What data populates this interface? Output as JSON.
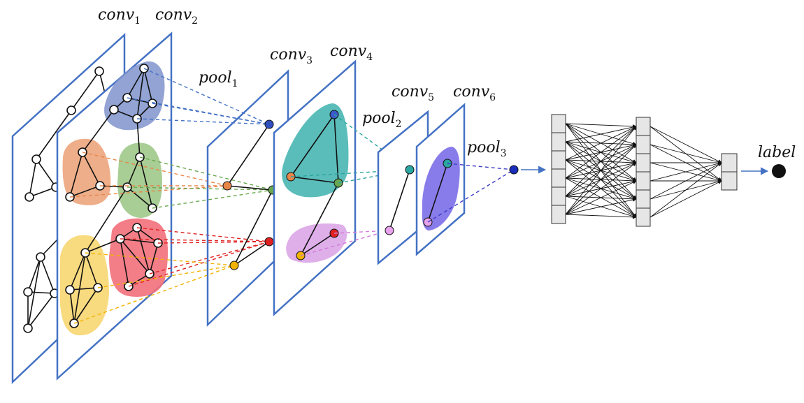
{
  "diagram": {
    "layers": {
      "conv1": {
        "base": "conv",
        "sub": "1"
      },
      "conv2": {
        "base": "conv",
        "sub": "2"
      },
      "pool1": {
        "base": "pool",
        "sub": "1"
      },
      "conv3": {
        "base": "conv",
        "sub": "3"
      },
      "conv4": {
        "base": "conv",
        "sub": "4"
      },
      "pool2": {
        "base": "pool",
        "sub": "2"
      },
      "conv5": {
        "base": "conv",
        "sub": "5"
      },
      "conv6": {
        "base": "conv",
        "sub": "6"
      },
      "pool3": {
        "base": "pool",
        "sub": "3"
      }
    },
    "output_label": "label",
    "colors": {
      "plane": "#4472c4",
      "blue_cluster": "#7f93cc",
      "orange_cluster": "#eca57c",
      "green_cluster": "#9fc98a",
      "yellow_cluster": "#f8d878",
      "red_cluster": "#f2707a",
      "teal_cluster": "#49b6b2",
      "violet_cluster": "#dca6e8",
      "purple_cluster": "#7b6ee8",
      "arrow": "#4472c4"
    }
  }
}
